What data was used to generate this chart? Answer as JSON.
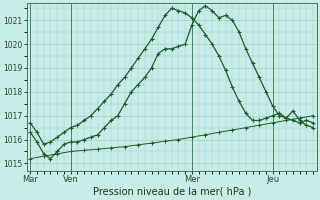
{
  "title": "Pression niveau de la mer( hPa )",
  "bg_color": "#c8ece8",
  "grid_color": "#9ecfc4",
  "line_color": "#1a5c2a",
  "ylim": [
    1014.7,
    1021.7
  ],
  "yticks": [
    1015,
    1016,
    1017,
    1018,
    1019,
    1020,
    1021
  ],
  "xlim": [
    -1,
    85
  ],
  "x_tick_positions": [
    0,
    12,
    48,
    72
  ],
  "x_tick_labels": [
    "Mar",
    "Ven",
    "Mer",
    "Jeu"
  ],
  "vline_positions": [
    0,
    12,
    48,
    72
  ],
  "series1_x": [
    0,
    2,
    4,
    6,
    8,
    10,
    12,
    14,
    16,
    18,
    20,
    22,
    24,
    26,
    28,
    30,
    32,
    34,
    36,
    38,
    40,
    42,
    44,
    46,
    48,
    50,
    52,
    54,
    56,
    58,
    60,
    62,
    64,
    66,
    68,
    70,
    72,
    74,
    76,
    78,
    80,
    82,
    84
  ],
  "series1_y": [
    1016.3,
    1015.9,
    1015.4,
    1015.2,
    1015.5,
    1015.8,
    1015.9,
    1015.9,
    1016.0,
    1016.1,
    1016.2,
    1016.5,
    1016.8,
    1017.0,
    1017.5,
    1018.0,
    1018.3,
    1018.6,
    1019.0,
    1019.6,
    1019.8,
    1019.8,
    1019.9,
    1020.0,
    1020.8,
    1021.4,
    1021.6,
    1021.4,
    1021.1,
    1021.2,
    1021.0,
    1020.5,
    1019.8,
    1019.2,
    1018.6,
    1018.0,
    1017.4,
    1017.0,
    1016.9,
    1016.8,
    1016.7,
    1016.8,
    1016.7
  ],
  "series2_x": [
    0,
    2,
    4,
    6,
    8,
    10,
    12,
    14,
    16,
    18,
    20,
    22,
    24,
    26,
    28,
    30,
    32,
    34,
    36,
    38,
    40,
    42,
    44,
    46,
    48,
    50,
    52,
    54,
    56,
    58,
    60,
    62,
    64,
    66,
    68,
    70,
    72,
    74,
    76,
    78,
    80,
    82,
    84
  ],
  "series2_y": [
    1016.7,
    1016.3,
    1015.8,
    1015.9,
    1016.1,
    1016.3,
    1016.5,
    1016.6,
    1016.8,
    1017.0,
    1017.3,
    1017.6,
    1017.9,
    1018.3,
    1018.6,
    1019.0,
    1019.4,
    1019.8,
    1020.2,
    1020.7,
    1021.2,
    1021.5,
    1021.4,
    1021.3,
    1021.1,
    1020.8,
    1020.4,
    1020.0,
    1019.5,
    1018.9,
    1018.2,
    1017.6,
    1017.1,
    1016.8,
    1016.8,
    1016.9,
    1017.0,
    1017.1,
    1016.9,
    1017.2,
    1016.8,
    1016.6,
    1016.5
  ],
  "series3_x": [
    0,
    4,
    8,
    12,
    16,
    20,
    24,
    28,
    32,
    36,
    40,
    44,
    48,
    52,
    56,
    60,
    64,
    68,
    72,
    76,
    80,
    84
  ],
  "series3_y": [
    1015.2,
    1015.3,
    1015.4,
    1015.5,
    1015.55,
    1015.6,
    1015.65,
    1015.7,
    1015.78,
    1015.85,
    1015.93,
    1016.0,
    1016.1,
    1016.2,
    1016.3,
    1016.4,
    1016.5,
    1016.6,
    1016.7,
    1016.8,
    1016.9,
    1017.0
  ]
}
